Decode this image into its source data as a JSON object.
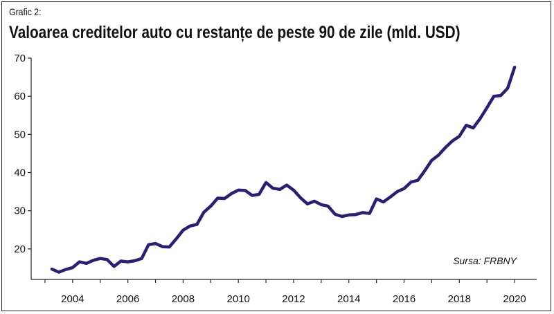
{
  "chart_label": "Grafic 2:",
  "chart_data": {
    "type": "line",
    "title": "Valoarea creditelor auto cu restanțe de peste 90 de zile (mld. USD)",
    "xlabel": "",
    "ylabel": "",
    "source": "Sursa: FRBNY",
    "xlim": [
      2002.5,
      2020.8
    ],
    "ylim": [
      12,
      70
    ],
    "xticks": [
      2004,
      2006,
      2008,
      2010,
      2012,
      2014,
      2016,
      2018,
      2020
    ],
    "yticks": [
      20,
      30,
      40,
      50,
      60,
      70
    ],
    "grid": false,
    "line_color": "#2a2070",
    "series": [
      {
        "x": [
          2003.25,
          2003.5,
          2003.75,
          2004.0,
          2004.25,
          2004.5,
          2004.75,
          2005.0,
          2005.25,
          2005.5,
          2005.75,
          2006.0,
          2006.25,
          2006.5,
          2006.75,
          2007.0,
          2007.25,
          2007.5,
          2007.75,
          2008.0,
          2008.25,
          2008.5,
          2008.75,
          2009.0,
          2009.25,
          2009.5,
          2009.75,
          2010.0,
          2010.25,
          2010.5,
          2010.75,
          2011.0,
          2011.25,
          2011.5,
          2011.75,
          2012.0,
          2012.25,
          2012.5,
          2012.75,
          2013.0,
          2013.25,
          2013.5,
          2013.75,
          2014.0,
          2014.25,
          2014.5,
          2014.75,
          2015.0,
          2015.25,
          2015.5,
          2015.75,
          2016.0,
          2016.25,
          2016.5,
          2016.75,
          2017.0,
          2017.25,
          2017.5,
          2017.75,
          2018.0,
          2018.25,
          2018.5,
          2018.75,
          2019.0,
          2019.25,
          2019.5,
          2019.75,
          2020.0
        ],
        "values": [
          14.7,
          13.9,
          14.6,
          15.1,
          16.6,
          16.2,
          17.0,
          17.5,
          17.2,
          15.4,
          16.8,
          16.6,
          16.9,
          17.5,
          21.1,
          21.4,
          20.6,
          20.5,
          22.6,
          24.9,
          26.0,
          26.4,
          29.6,
          31.2,
          33.3,
          33.2,
          34.5,
          35.4,
          35.3,
          34.0,
          34.3,
          37.4,
          35.9,
          35.6,
          36.7,
          35.4,
          33.4,
          31.8,
          32.5,
          31.6,
          31.2,
          29.1,
          28.5,
          28.9,
          29.0,
          29.5,
          29.3,
          33.1,
          32.3,
          33.6,
          35.0,
          35.8,
          37.5,
          38.0,
          40.5,
          43.2,
          44.6,
          46.6,
          48.3,
          49.5,
          52.4,
          51.7,
          54.1,
          57.0,
          60.0,
          60.2,
          62.1,
          67.6
        ]
      }
    ]
  }
}
